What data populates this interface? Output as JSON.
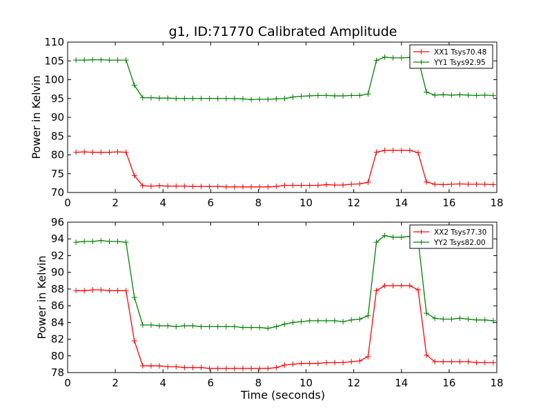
{
  "chart_data": [
    {
      "type": "line",
      "title": "g1, ID:71770 Calibrated Amplitude",
      "xlabel": "",
      "ylabel": "Power in Kelvin",
      "xlim": [
        0,
        18
      ],
      "ylim": [
        70,
        110
      ],
      "xticks": [
        0,
        2,
        4,
        6,
        8,
        10,
        12,
        14,
        16,
        18
      ],
      "yticks": [
        70,
        75,
        80,
        85,
        90,
        95,
        100,
        105,
        110
      ],
      "legend_position": "top-right",
      "grid": false,
      "x": [
        0.35,
        0.7,
        1.05,
        1.4,
        1.75,
        2.1,
        2.45,
        2.8,
        3.15,
        3.5,
        3.85,
        4.2,
        4.55,
        4.9,
        5.25,
        5.6,
        5.95,
        6.3,
        6.65,
        7.0,
        7.35,
        7.7,
        8.05,
        8.4,
        8.75,
        9.1,
        9.45,
        9.8,
        10.15,
        10.5,
        10.85,
        11.2,
        11.55,
        11.9,
        12.25,
        12.6,
        12.95,
        13.3,
        13.65,
        14.0,
        14.35,
        14.7,
        15.05,
        15.4,
        15.75,
        16.1,
        16.45,
        16.8,
        17.15,
        17.5,
        17.85
      ],
      "series": [
        {
          "name": "XX1 Tsys70.48",
          "color": "#ff0000",
          "values": [
            80.7,
            80.8,
            80.7,
            80.7,
            80.7,
            80.8,
            80.7,
            74.5,
            71.8,
            71.7,
            71.8,
            71.7,
            71.7,
            71.7,
            71.6,
            71.6,
            71.6,
            71.6,
            71.5,
            71.5,
            71.5,
            71.5,
            71.5,
            71.5,
            71.6,
            71.9,
            71.9,
            71.9,
            71.9,
            71.9,
            72.1,
            72.0,
            72.0,
            72.2,
            72.3,
            72.7,
            80.7,
            81.2,
            81.2,
            81.2,
            81.2,
            80.6,
            72.8,
            72.2,
            72.1,
            72.2,
            72.3,
            72.2,
            72.2,
            72.2,
            72.1
          ]
        },
        {
          "name": "YY1 Tsys92.95",
          "color": "#008000",
          "values": [
            105.2,
            105.2,
            105.3,
            105.3,
            105.2,
            105.2,
            105.2,
            98.5,
            95.2,
            95.2,
            95.1,
            95.1,
            95.0,
            95.0,
            95.0,
            95.0,
            95.0,
            95.0,
            95.0,
            95.0,
            94.9,
            94.7,
            94.8,
            94.8,
            94.9,
            95.0,
            95.4,
            95.6,
            95.7,
            95.8,
            95.8,
            95.7,
            95.7,
            95.8,
            95.8,
            96.2,
            105.1,
            106.0,
            105.8,
            105.8,
            105.9,
            105.5,
            96.7,
            95.9,
            96.0,
            95.9,
            96.0,
            95.9,
            95.8,
            95.9,
            95.8
          ]
        }
      ]
    },
    {
      "type": "line",
      "title": "",
      "xlabel": "Time (seconds)",
      "ylabel": "Power in Kelvin",
      "xlim": [
        0,
        18
      ],
      "ylim": [
        78,
        96
      ],
      "xticks": [
        0,
        2,
        4,
        6,
        8,
        10,
        12,
        14,
        16,
        18
      ],
      "yticks": [
        78,
        80,
        82,
        84,
        86,
        88,
        90,
        92,
        94,
        96
      ],
      "legend_position": "top-right",
      "grid": false,
      "x": [
        0.35,
        0.7,
        1.05,
        1.4,
        1.75,
        2.1,
        2.45,
        2.8,
        3.15,
        3.5,
        3.85,
        4.2,
        4.55,
        4.9,
        5.25,
        5.6,
        5.95,
        6.3,
        6.65,
        7.0,
        7.35,
        7.7,
        8.05,
        8.4,
        8.75,
        9.1,
        9.45,
        9.8,
        10.15,
        10.5,
        10.85,
        11.2,
        11.55,
        11.9,
        12.25,
        12.6,
        12.95,
        13.3,
        13.65,
        14.0,
        14.35,
        14.7,
        15.05,
        15.4,
        15.75,
        16.1,
        16.45,
        16.8,
        17.15,
        17.5,
        17.85
      ],
      "series": [
        {
          "name": "XX2 Tsys77.30",
          "color": "#ff0000",
          "values": [
            87.8,
            87.8,
            87.9,
            87.9,
            87.8,
            87.8,
            87.8,
            81.8,
            78.8,
            78.8,
            78.8,
            78.7,
            78.7,
            78.6,
            78.6,
            78.6,
            78.5,
            78.5,
            78.5,
            78.5,
            78.5,
            78.5,
            78.5,
            78.5,
            78.6,
            78.9,
            79.0,
            79.1,
            79.1,
            79.1,
            79.2,
            79.2,
            79.2,
            79.3,
            79.4,
            79.9,
            87.8,
            88.4,
            88.4,
            88.4,
            88.4,
            87.9,
            80.1,
            79.3,
            79.3,
            79.3,
            79.3,
            79.3,
            79.2,
            79.2,
            79.2
          ]
        },
        {
          "name": "YY2 Tsys82.00",
          "color": "#008000",
          "values": [
            93.6,
            93.7,
            93.7,
            93.8,
            93.7,
            93.7,
            93.6,
            87.0,
            83.7,
            83.7,
            83.6,
            83.6,
            83.5,
            83.6,
            83.6,
            83.5,
            83.5,
            83.5,
            83.5,
            83.5,
            83.4,
            83.4,
            83.4,
            83.3,
            83.5,
            83.8,
            84.0,
            84.1,
            84.2,
            84.2,
            84.2,
            84.2,
            84.1,
            84.3,
            84.4,
            84.8,
            93.6,
            94.4,
            94.2,
            94.2,
            94.3,
            93.9,
            85.1,
            84.5,
            84.4,
            84.4,
            84.5,
            84.4,
            84.3,
            84.3,
            84.2
          ]
        }
      ]
    }
  ]
}
